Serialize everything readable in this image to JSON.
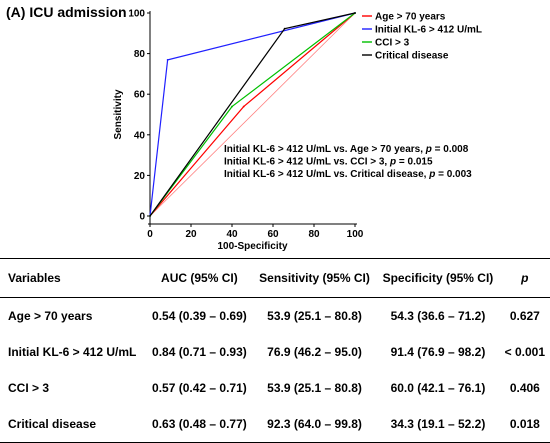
{
  "panel_label": "(A) ICU admission",
  "chart_data": {
    "type": "line",
    "title": "",
    "xlabel": "100-Specificity",
    "ylabel": "Sensitivity",
    "xlim": [
      0,
      100
    ],
    "ylim": [
      0,
      100
    ],
    "xticks": [
      0,
      20,
      40,
      60,
      80,
      100
    ],
    "yticks": [
      0,
      20,
      40,
      60,
      80,
      100
    ],
    "grid": false,
    "legend_position": "top-right",
    "series": [
      {
        "name": "Age > 70 years",
        "color": "#ff0000",
        "points": [
          [
            0,
            0
          ],
          [
            45.7,
            53.9
          ],
          [
            100,
            100
          ]
        ]
      },
      {
        "name": "Initial KL-6 > 412 U/mL",
        "color": "#2020ff",
        "points": [
          [
            0,
            0
          ],
          [
            8.6,
            76.9
          ],
          [
            100,
            100
          ]
        ]
      },
      {
        "name": "CCI > 3",
        "color": "#00c000",
        "points": [
          [
            0,
            0
          ],
          [
            40.0,
            53.9
          ],
          [
            100,
            100
          ]
        ]
      },
      {
        "name": "Critical disease",
        "color": "#000000",
        "points": [
          [
            0,
            0
          ],
          [
            65.7,
            92.3
          ],
          [
            100,
            100
          ]
        ]
      }
    ],
    "diagonal_reference": true,
    "annotations": [
      {
        "text": "Initial KL-6 > 412 U/mL vs. Age > 70 years,",
        "p_label": "p",
        "p_value": "= 0.008"
      },
      {
        "text": "Initial KL-6 > 412 U/mL vs. CCI > 3,",
        "p_label": "p",
        "p_value": "= 0.015"
      },
      {
        "text": "Initial KL-6 > 412 U/mL vs. Critical disease,",
        "p_label": "p",
        "p_value": "= 0.003"
      }
    ]
  },
  "table": {
    "headers": [
      "Variables",
      "AUC (95% CI)",
      "Sensitivity (95% CI)",
      "Specificity (95% CI)",
      "p"
    ],
    "rows": [
      [
        "Age > 70 years",
        "0.54 (0.39 – 0.69)",
        "53.9 (25.1 – 80.8)",
        "54.3 (36.6 – 71.2)",
        "0.627"
      ],
      [
        "Initial KL-6 > 412 U/mL",
        "0.84 (0.71 – 0.93)",
        "76.9 (46.2 – 95.0)",
        "91.4 (76.9 – 98.2)",
        "< 0.001"
      ],
      [
        "CCI > 3",
        "0.57 (0.42 – 0.71)",
        "53.9 (25.1 – 80.8)",
        "60.0 (42.1 – 76.1)",
        "0.406"
      ],
      [
        "Critical disease",
        "0.63 (0.48 – 0.77)",
        "92.3 (64.0 – 99.8)",
        "34.3 (19.1 – 52.2)",
        "0.018"
      ]
    ]
  }
}
